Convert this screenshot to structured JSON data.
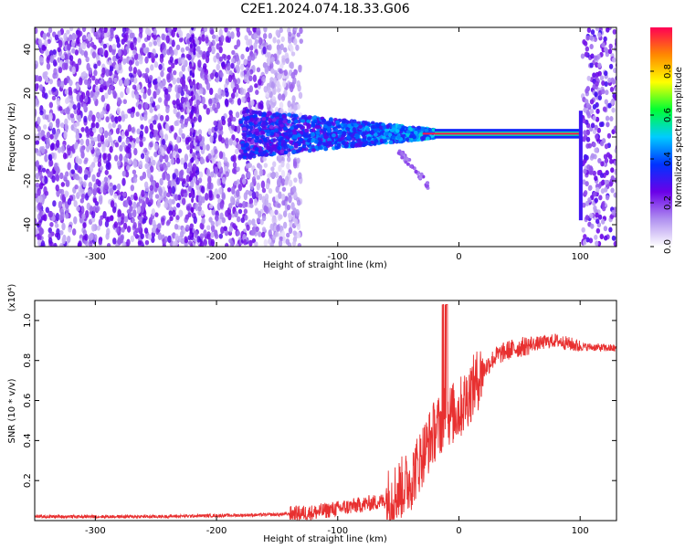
{
  "title": "C2E1.2024.074.18.33.G06",
  "chart_data": [
    {
      "type": "heatmap",
      "xlabel": "Height of straight line (km)",
      "ylabel": "Frequency (Hz)",
      "xlim": [
        -350,
        130
      ],
      "ylim": [
        -50,
        50
      ],
      "x_ticks": [
        -300,
        -200,
        -100,
        0,
        100
      ],
      "y_ticks": [
        -40,
        -20,
        0,
        20,
        40
      ],
      "colorbar": {
        "label": "Normalized spectral amplitude",
        "range": [
          0.0,
          1.0
        ],
        "ticks": [
          "0.0",
          "0.2",
          "0.4",
          "0.6",
          "0.8"
        ],
        "colors": [
          "#ffffff",
          "#b090f0",
          "#6a00e8",
          "#0033ff",
          "#00ccff",
          "#00ff33",
          "#ffff00",
          "#ff8800",
          "#ff0055"
        ]
      },
      "features": {
        "noise_region": [
          -350,
          -140
        ],
        "signal_start": -180,
        "carrier_frequency": 1.5,
        "carrier_bright_from": -20,
        "carrier_end": 100,
        "left_spike": -220,
        "right_noise_region": [
          100,
          130
        ]
      }
    },
    {
      "type": "line",
      "xlabel": "Height of straight line (km)",
      "ylabel": "SNR (10 * v/v)",
      "y_multiplier": "(x10⁴)",
      "xlim": [
        -350,
        130
      ],
      "ylim": [
        0,
        1.1
      ],
      "x_ticks": [
        -300,
        -200,
        -100,
        0,
        100
      ],
      "y_ticks": [
        "0.2",
        "0.4",
        "0.6",
        "0.8",
        "1.0"
      ],
      "series": [
        {
          "color": "#e83030",
          "x": [
            -350,
            -300,
            -250,
            -200,
            -150,
            -120,
            -100,
            -80,
            -60,
            -40,
            -30,
            -20,
            -10,
            0,
            10,
            20,
            30,
            40,
            60,
            80,
            100,
            130
          ],
          "y": [
            0.02,
            0.02,
            0.02,
            0.025,
            0.03,
            0.04,
            0.06,
            0.08,
            0.1,
            0.2,
            0.33,
            0.45,
            0.52,
            0.55,
            0.65,
            0.75,
            0.82,
            0.85,
            0.88,
            0.9,
            0.87,
            0.86
          ]
        }
      ]
    }
  ]
}
